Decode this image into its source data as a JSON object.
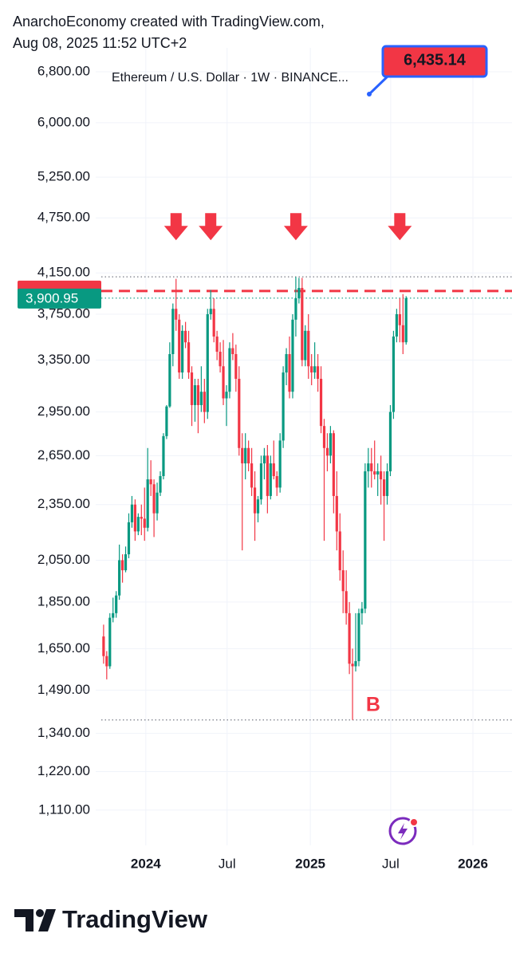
{
  "header": {
    "line1": "AnarchoEconomy created with TradingView.com,",
    "line2": "Aug 08, 2025 11:52 UTC+2"
  },
  "footer": {
    "brand": "TradingView"
  },
  "chart_data": {
    "type": "candlestick",
    "title": "Ethereum / U.S. Dollar · 1W · BINANCE...",
    "log_scale": true,
    "up_color": "#089981",
    "down_color": "#f23645",
    "grid": true,
    "ylim": [
      1018,
      7211
    ],
    "xlim": [
      -2.5,
      129.6
    ],
    "yticks": [
      {
        "value": 6800,
        "label": "6,800.00"
      },
      {
        "value": 6000,
        "label": "6,000.00"
      },
      {
        "value": 5250,
        "label": "5,250.00"
      },
      {
        "value": 4750,
        "label": "4,750.00"
      },
      {
        "value": 4150,
        "label": "4,150.00"
      },
      {
        "value": 3750,
        "label": "3,750.00"
      },
      {
        "value": 3350,
        "label": "3,350.00"
      },
      {
        "value": 2950,
        "label": "2,950.00"
      },
      {
        "value": 2650,
        "label": "2,650.00"
      },
      {
        "value": 2350,
        "label": "2,350.00"
      },
      {
        "value": 2050,
        "label": "2,050.00"
      },
      {
        "value": 1850,
        "label": "1,850.00"
      },
      {
        "value": 1650,
        "label": "1,650.00"
      },
      {
        "value": 1490,
        "label": "1,490.00"
      },
      {
        "value": 1340,
        "label": "1,340.00"
      },
      {
        "value": 1220,
        "label": "1,220.00"
      },
      {
        "value": 1110,
        "label": "1,110.00"
      }
    ],
    "xticks": [
      {
        "value": 13.4,
        "label": "2024"
      },
      {
        "value": 39.2,
        "label": "Jul"
      },
      {
        "value": 65.6,
        "label": "2025"
      },
      {
        "value": 91.1,
        "label": "Jul"
      },
      {
        "value": 117.2,
        "label": "2026"
      }
    ],
    "x": [
      0,
      1,
      2,
      3,
      4,
      5,
      6,
      7,
      8,
      9,
      10,
      11,
      12,
      13,
      14,
      15,
      16,
      17,
      18,
      19,
      20,
      21,
      22,
      23,
      24,
      25,
      26,
      27,
      28,
      29,
      30,
      31,
      32,
      33,
      34,
      35,
      36,
      37,
      38,
      39,
      40,
      41,
      42,
      43,
      44,
      45,
      46,
      47,
      48,
      49,
      50,
      51,
      52,
      53,
      54,
      55,
      56,
      57,
      58,
      59,
      60,
      61,
      62,
      63,
      64,
      65,
      66,
      67,
      68,
      69,
      70,
      71,
      72,
      73,
      74,
      75,
      76,
      77,
      78,
      79,
      80,
      81,
      82,
      83,
      84,
      85,
      86,
      87,
      88,
      89,
      90,
      91,
      92,
      93,
      94,
      95,
      96
    ],
    "ohlc": [
      [
        1700,
        1750,
        1590,
        1620
      ],
      [
        1620,
        1640,
        1530,
        1580
      ],
      [
        1580,
        1800,
        1570,
        1780
      ],
      [
        1780,
        1870,
        1760,
        1800
      ],
      [
        1800,
        1900,
        1780,
        1880
      ],
      [
        1880,
        2130,
        1860,
        2050
      ],
      [
        2050,
        2080,
        1940,
        2000
      ],
      [
        2000,
        2120,
        1990,
        2080
      ],
      [
        2080,
        2300,
        2060,
        2250
      ],
      [
        2250,
        2400,
        2220,
        2350
      ],
      [
        2350,
        2380,
        2150,
        2200
      ],
      [
        2200,
        2300,
        2180,
        2280
      ],
      [
        2280,
        2350,
        2180,
        2270
      ],
      [
        2270,
        2450,
        2150,
        2220
      ],
      [
        2220,
        2700,
        2200,
        2500
      ],
      [
        2500,
        2620,
        2400,
        2470
      ],
      [
        2470,
        2500,
        2170,
        2300
      ],
      [
        2300,
        2480,
        2260,
        2420
      ],
      [
        2420,
        2550,
        2400,
        2520
      ],
      [
        2520,
        2800,
        2500,
        2780
      ],
      [
        2780,
        3000,
        2760,
        2990
      ],
      [
        2990,
        3500,
        2980,
        3400
      ],
      [
        3400,
        3850,
        3300,
        3800
      ],
      [
        3800,
        4090,
        3600,
        3700
      ],
      [
        3700,
        3750,
        3200,
        3250
      ],
      [
        3250,
        3650,
        3200,
        3600
      ],
      [
        3600,
        3680,
        3450,
        3500
      ],
      [
        3500,
        3600,
        3200,
        3250
      ],
      [
        3250,
        3300,
        2850,
        3000
      ],
      [
        3000,
        3200,
        2880,
        3150
      ],
      [
        3150,
        3200,
        2800,
        3000
      ],
      [
        3000,
        3300,
        2950,
        3100
      ],
      [
        3100,
        3200,
        2870,
        2950
      ],
      [
        2950,
        3800,
        2900,
        3750
      ],
      [
        3750,
        3980,
        3700,
        3800
      ],
      [
        3800,
        3900,
        3500,
        3550
      ],
      [
        3550,
        3600,
        3350,
        3420
      ],
      [
        3420,
        3500,
        3250,
        3300
      ],
      [
        3300,
        3520,
        3000,
        3050
      ],
      [
        3050,
        3150,
        2850,
        3100
      ],
      [
        3100,
        3500,
        3050,
        3450
      ],
      [
        3450,
        3580,
        3350,
        3400
      ],
      [
        3400,
        3480,
        3100,
        3200
      ],
      [
        3200,
        3300,
        2650,
        2700
      ],
      [
        2700,
        2800,
        2100,
        2600
      ],
      [
        2600,
        2800,
        2500,
        2700
      ],
      [
        2700,
        2750,
        2550,
        2600
      ],
      [
        2600,
        2700,
        2400,
        2450
      ],
      [
        2450,
        2550,
        2150,
        2300
      ],
      [
        2300,
        2400,
        2250,
        2380
      ],
      [
        2380,
        2650,
        2350,
        2600
      ],
      [
        2600,
        2700,
        2500,
        2650
      ],
      [
        2650,
        2720,
        2300,
        2400
      ],
      [
        2400,
        2650,
        2380,
        2600
      ],
      [
        2600,
        2750,
        2500,
        2520
      ],
      [
        2520,
        2550,
        2400,
        2450
      ],
      [
        2450,
        2800,
        2420,
        2750
      ],
      [
        2750,
        3300,
        2700,
        3250
      ],
      [
        3250,
        3450,
        3150,
        3400
      ],
      [
        3400,
        3550,
        3050,
        3100
      ],
      [
        3100,
        3750,
        3050,
        3700
      ],
      [
        3700,
        4110,
        3550,
        3900
      ],
      [
        3900,
        4100,
        3850,
        4000
      ],
      [
        4000,
        4100,
        3300,
        3350
      ],
      [
        3350,
        3650,
        3300,
        3600
      ],
      [
        3600,
        3750,
        3200,
        3300
      ],
      [
        3300,
        3400,
        3150,
        3250
      ],
      [
        3250,
        3500,
        3200,
        3300
      ],
      [
        3300,
        3400,
        3100,
        3200
      ],
      [
        3200,
        3300,
        2800,
        2850
      ],
      [
        2850,
        2900,
        2150,
        2700
      ],
      [
        2700,
        2800,
        2550,
        2650
      ],
      [
        2650,
        2850,
        2600,
        2800
      ],
      [
        2800,
        2820,
        2300,
        2400
      ],
      [
        2400,
        2550,
        2100,
        2200
      ],
      [
        2200,
        2300,
        1950,
        2000
      ],
      [
        2000,
        2100,
        1800,
        1900
      ],
      [
        1900,
        2000,
        1750,
        1800
      ],
      [
        1800,
        1850,
        1550,
        1590
      ],
      [
        1590,
        1650,
        1385,
        1580
      ],
      [
        1580,
        1800,
        1560,
        1600
      ],
      [
        1600,
        1820,
        1580,
        1800
      ],
      [
        1800,
        1850,
        1750,
        1820
      ],
      [
        1820,
        2600,
        1800,
        2550
      ],
      [
        2550,
        2700,
        2450,
        2600
      ],
      [
        2600,
        2700,
        2450,
        2550
      ],
      [
        2550,
        2750,
        2500,
        2530
      ],
      [
        2530,
        2600,
        2400,
        2550
      ],
      [
        2550,
        2650,
        2350,
        2500
      ],
      [
        2500,
        2550,
        2150,
        2400
      ],
      [
        2400,
        2600,
        2350,
        2550
      ],
      [
        2550,
        3000,
        2520,
        2950
      ],
      [
        2950,
        3600,
        2900,
        3550
      ],
      [
        3550,
        3800,
        3500,
        3750
      ],
      [
        3750,
        3900,
        3500,
        3650
      ],
      [
        3650,
        3940,
        3400,
        3500
      ],
      [
        3500,
        3920,
        3480,
        3900
      ]
    ],
    "last_price": {
      "value": 3900.95,
      "label": "3,900.95"
    },
    "lines": [
      {
        "value": 4110,
        "style": "dotted",
        "color": "#787b86"
      },
      {
        "value": 3970,
        "style": "dashed",
        "color": "#f23645"
      },
      {
        "value": 3900.95,
        "style": "dotted",
        "color": "#089981"
      },
      {
        "value": 1385,
        "style": "dotted",
        "color": "#787b86"
      }
    ],
    "arrows": {
      "x": [
        23,
        34,
        61,
        94
      ],
      "y": 4640,
      "color": "#f23645"
    },
    "annotations": [
      {
        "text": "B",
        "x": 82,
        "y": 1434
      },
      {
        "text": "6,435.14"
      }
    ]
  }
}
